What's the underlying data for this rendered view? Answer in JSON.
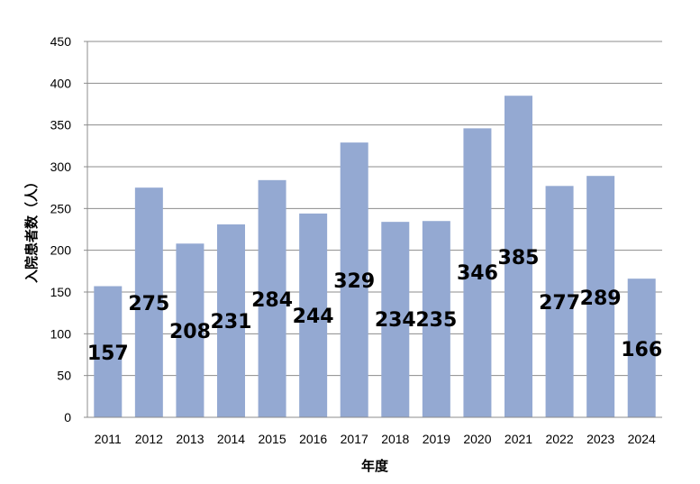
{
  "chart_data": {
    "type": "bar",
    "title": "",
    "xlabel": "年度",
    "ylabel": "入院患者数（人）",
    "categories": [
      "2011",
      "2012",
      "2013",
      "2014",
      "2015",
      "2016",
      "2017",
      "2018",
      "2019",
      "2020",
      "2021",
      "2022",
      "2023",
      "2024"
    ],
    "values": [
      157,
      275,
      208,
      231,
      284,
      244,
      329,
      234,
      235,
      346,
      385,
      277,
      289,
      166
    ],
    "ylim": [
      0,
      450
    ],
    "yticks": [
      0,
      50,
      100,
      150,
      200,
      250,
      300,
      350,
      400,
      450
    ],
    "grid": true,
    "colors": {
      "bar": "#94a9d2",
      "grid": "#8c8c8c"
    }
  }
}
